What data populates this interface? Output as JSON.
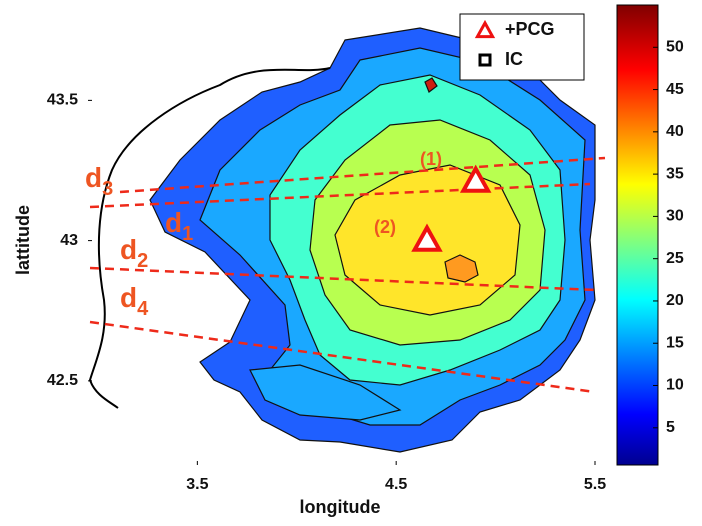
{
  "chart_data": {
    "type": "scatter",
    "x_label": "longitude",
    "y_label": "lattitude",
    "xlim": [
      2.95,
      5.5
    ],
    "ylim": [
      42.2,
      43.84
    ],
    "xticks": [
      3.5,
      4.5,
      5.5
    ],
    "yticks": [
      42.5,
      43,
      43.5
    ],
    "colorbar": {
      "clim": [
        0.6,
        55
      ],
      "ticks": [
        5,
        10,
        15,
        20,
        25,
        30,
        35,
        40,
        45,
        50
      ],
      "colormap": "jet"
    },
    "legend": "upper right",
    "series": [
      {
        "name": "+PCG",
        "marker": "triangle",
        "color": "#ee1111",
        "x": [
          4.9,
          4.655
        ],
        "y": [
          43.21,
          43.0
        ]
      },
      {
        "name": "IC",
        "marker": "square",
        "color": "#000000",
        "x": [],
        "y": []
      }
    ],
    "annotations": [
      {
        "label": "d",
        "subscript": "3"
      },
      {
        "label": "d",
        "subscript": "1"
      },
      {
        "label": "d",
        "subscript": "2"
      },
      {
        "label": "d",
        "subscript": "4"
      },
      {
        "label": "(1)"
      },
      {
        "label": "(2)"
      }
    ]
  }
}
